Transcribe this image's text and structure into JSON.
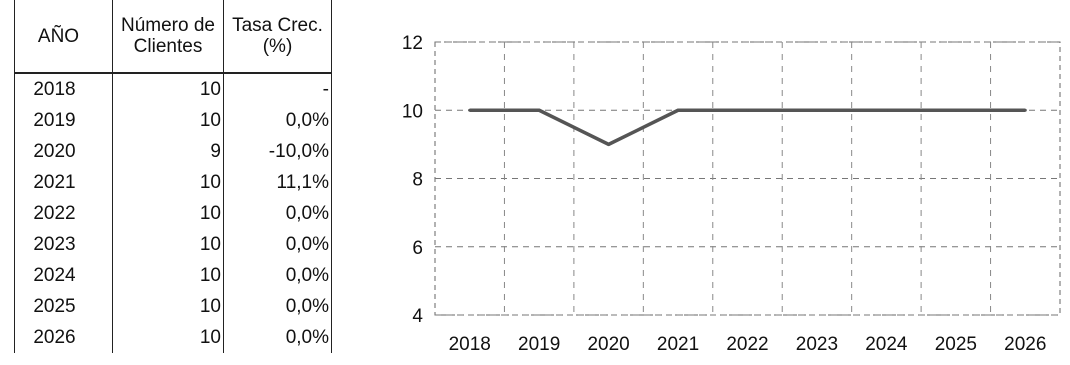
{
  "table": {
    "headers": [
      "AÑO",
      "Número de Clientes",
      "Tasa Crec. (%)"
    ],
    "header_lines": [
      [
        "AÑO"
      ],
      [
        "Número de",
        "Clientes"
      ],
      [
        "Tasa Crec.",
        "(%)"
      ]
    ],
    "rows": [
      [
        "2018",
        "10",
        "-"
      ],
      [
        "2019",
        "10",
        "0,0%"
      ],
      [
        "2020",
        "9",
        "-10,0%"
      ],
      [
        "2021",
        "10",
        "11,1%"
      ],
      [
        "2022",
        "10",
        "0,0%"
      ],
      [
        "2023",
        "10",
        "0,0%"
      ],
      [
        "2024",
        "10",
        "0,0%"
      ],
      [
        "2025",
        "10",
        "0,0%"
      ],
      [
        "2026",
        "10",
        "0,0%"
      ]
    ]
  },
  "chart_data": {
    "type": "line",
    "x": [
      "2018",
      "2019",
      "2020",
      "2021",
      "2022",
      "2023",
      "2024",
      "2025",
      "2026"
    ],
    "series": [
      {
        "values": [
          10,
          10,
          9,
          10,
          10,
          10,
          10,
          10,
          10
        ]
      }
    ],
    "ylim": [
      4,
      12
    ],
    "yticks": [
      "4",
      "6",
      "8",
      "10",
      "12"
    ],
    "grid": true,
    "line_color": "#555555"
  }
}
